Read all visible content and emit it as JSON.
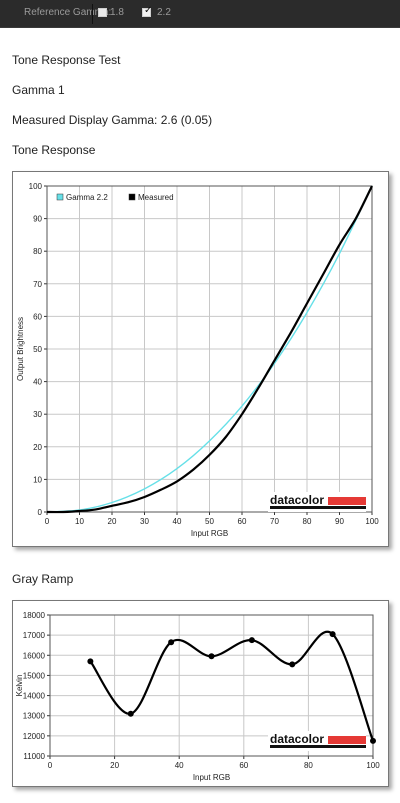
{
  "topbar": {
    "reference_label": "Reference Gamma:",
    "options": [
      {
        "label": "1.8",
        "checked": false
      },
      {
        "label": "2.2",
        "checked": true
      }
    ]
  },
  "page": {
    "title": "Tone Response Test",
    "subtitle": "Gamma 1",
    "measured_text": "Measured Display Gamma: 2.6 (0.05)",
    "tone_section": "Tone Response",
    "gray_section": "Gray Ramp"
  },
  "logo_text": "datacolor",
  "colors": {
    "gamma_curve": "#66e0e8",
    "measured_curve": "#000000",
    "logo_bar": "#e53935",
    "grid": "#c8c8c8"
  },
  "tone_chart": {
    "chart_data": {
      "type": "line",
      "xlabel": "Input RGB",
      "ylabel": "Output Brightness",
      "xlim": [
        0,
        100
      ],
      "ylim": [
        0,
        100
      ],
      "xticks": [
        "0",
        "10",
        "20",
        "30",
        "40",
        "50",
        "60",
        "70",
        "80",
        "90",
        "100"
      ],
      "yticks": [
        "0",
        "10",
        "20",
        "30",
        "40",
        "50",
        "60",
        "70",
        "80",
        "90",
        "100"
      ],
      "legend": "top-left",
      "grid": true,
      "series": [
        {
          "name": "Gamma 2.2",
          "color": "#66e0e8",
          "x": [
            0,
            10,
            20,
            30,
            40,
            50,
            60,
            70,
            80,
            90,
            100
          ],
          "y": [
            0,
            0.6,
            2.9,
            7.1,
            13.3,
            21.8,
            32.5,
            45.6,
            61.2,
            79.3,
            100
          ]
        },
        {
          "name": "Measured",
          "color": "#000000",
          "x": [
            0,
            5,
            10,
            15,
            20,
            25,
            30,
            35,
            40,
            45,
            50,
            55,
            60,
            65,
            70,
            75,
            80,
            85,
            90,
            95,
            100
          ],
          "y": [
            0,
            0,
            0.3,
            0.8,
            1.9,
            3,
            4.6,
            6.8,
            9.4,
            13,
            17.5,
            23,
            30,
            38,
            46.5,
            55,
            64,
            73,
            82,
            90,
            100
          ]
        }
      ]
    }
  },
  "gray_chart": {
    "chart_data": {
      "type": "line",
      "xlabel": "Input RGB",
      "ylabel": "Kelvin",
      "xlim": [
        0,
        100
      ],
      "ylim": [
        11000,
        18000
      ],
      "xticks": [
        "0",
        "20",
        "40",
        "60",
        "80",
        "100"
      ],
      "yticks": [
        "11000",
        "12000",
        "13000",
        "14000",
        "15000",
        "16000",
        "17000",
        "18000"
      ],
      "grid": true,
      "series": [
        {
          "color": "#000000",
          "x": [
            12.5,
            25,
            37.5,
            50,
            62.5,
            75,
            87.5,
            100
          ],
          "y": [
            15700,
            13100,
            16650,
            15950,
            16750,
            15550,
            17050,
            11750
          ]
        }
      ]
    }
  }
}
